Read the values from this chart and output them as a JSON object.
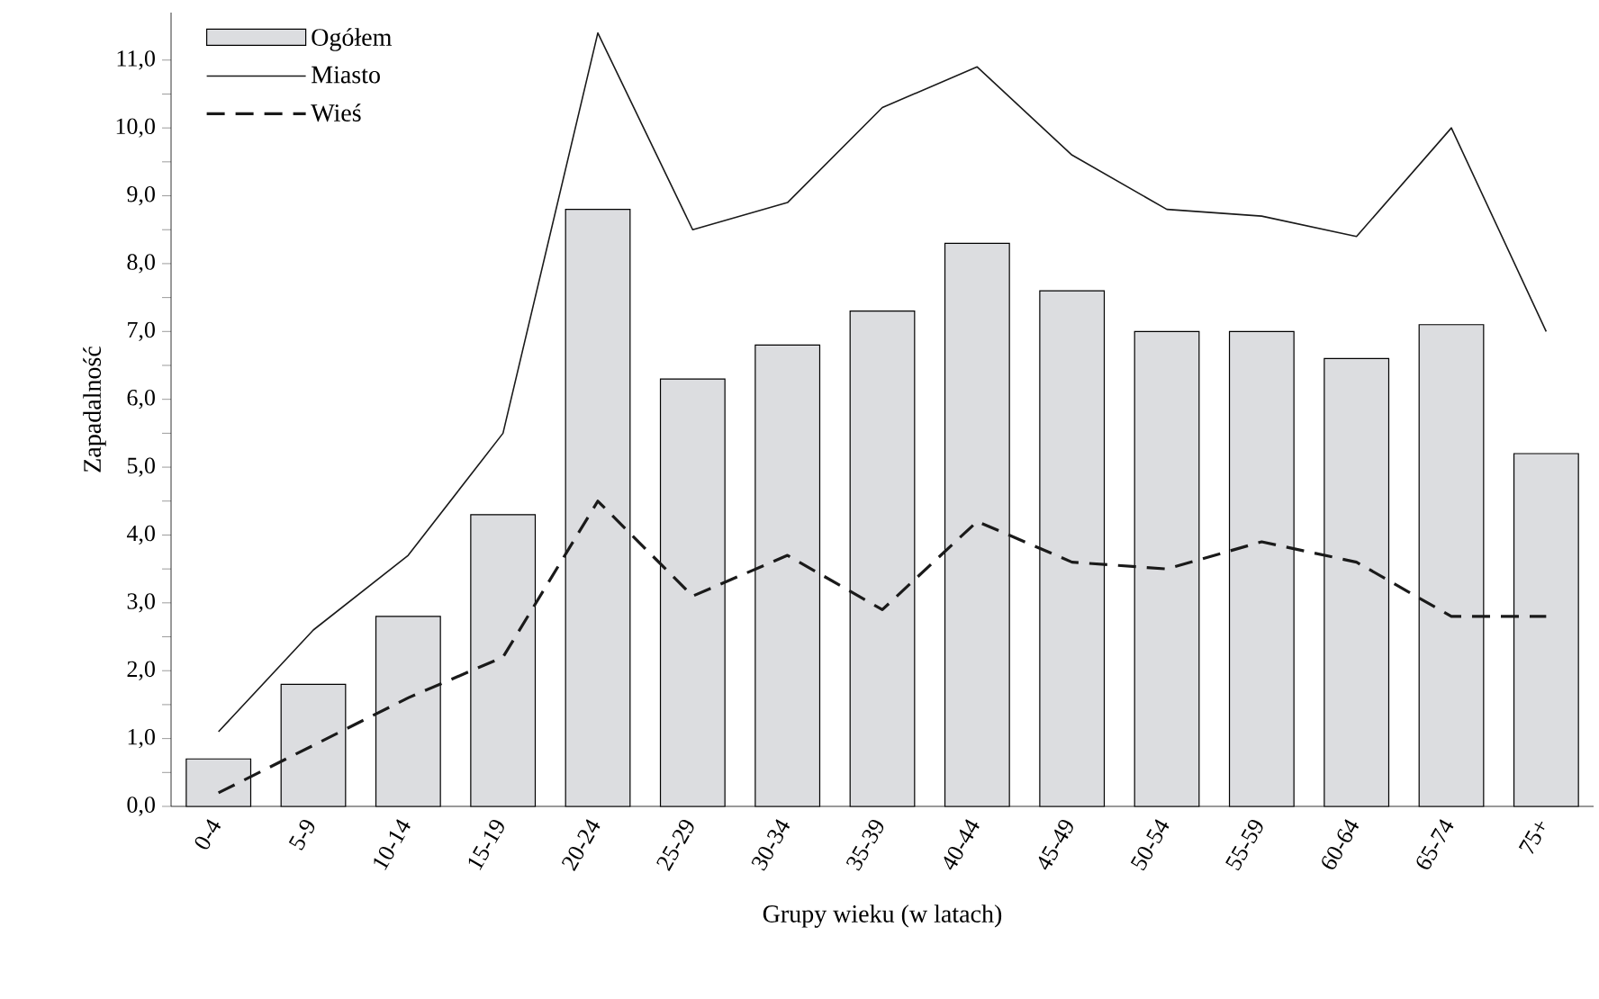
{
  "chart_data": {
    "type": "bar",
    "xlabel": "Grupy wieku (w latach)",
    "ylabel": "Zapadalność",
    "categories": [
      "0-4",
      "5-9",
      "10-14",
      "15-19",
      "20-24",
      "25-29",
      "30-34",
      "35-39",
      "40-44",
      "45-49",
      "50-54",
      "55-59",
      "60-64",
      "65-74",
      "75+"
    ],
    "series": [
      {
        "name": "Ogółem",
        "color": "#dcdde0",
        "values": [
          0.7,
          1.8,
          2.8,
          4.3,
          8.8,
          6.3,
          6.8,
          7.3,
          8.3,
          7.6,
          7.0,
          7.0,
          6.6,
          7.1,
          5.2
        ]
      },
      {
        "name": "Miasto",
        "type": "line",
        "line_style": "solid",
        "color": "#1a1a1a",
        "values": [
          1.1,
          2.6,
          3.7,
          5.5,
          11.4,
          8.5,
          8.9,
          10.3,
          10.9,
          9.6,
          8.8,
          8.7,
          8.4,
          10.0,
          7.0
        ]
      },
      {
        "name": "Wieś",
        "type": "line",
        "line_style": "dashed",
        "color": "#1a1a1a",
        "values": [
          0.2,
          0.9,
          1.6,
          2.2,
          4.5,
          3.1,
          3.7,
          2.9,
          4.2,
          3.6,
          3.5,
          3.9,
          3.6,
          2.8,
          2.8
        ]
      }
    ],
    "ylim": [
      0,
      11.7
    ],
    "yticks": [
      {
        "value": 0,
        "label": "0,0"
      },
      {
        "value": 1,
        "label": "1,0"
      },
      {
        "value": 2,
        "label": "2,0"
      },
      {
        "value": 3,
        "label": "3,0"
      },
      {
        "value": 4,
        "label": "4,0"
      },
      {
        "value": 5,
        "label": "5,0"
      },
      {
        "value": 6,
        "label": "6,0"
      },
      {
        "value": 7,
        "label": "7,0"
      },
      {
        "value": 8,
        "label": "8,0"
      },
      {
        "value": 9,
        "label": "9,0"
      },
      {
        "value": 10,
        "label": "10,0"
      },
      {
        "value": 11,
        "label": "11,0"
      }
    ],
    "grid": false,
    "legend": "top left"
  }
}
